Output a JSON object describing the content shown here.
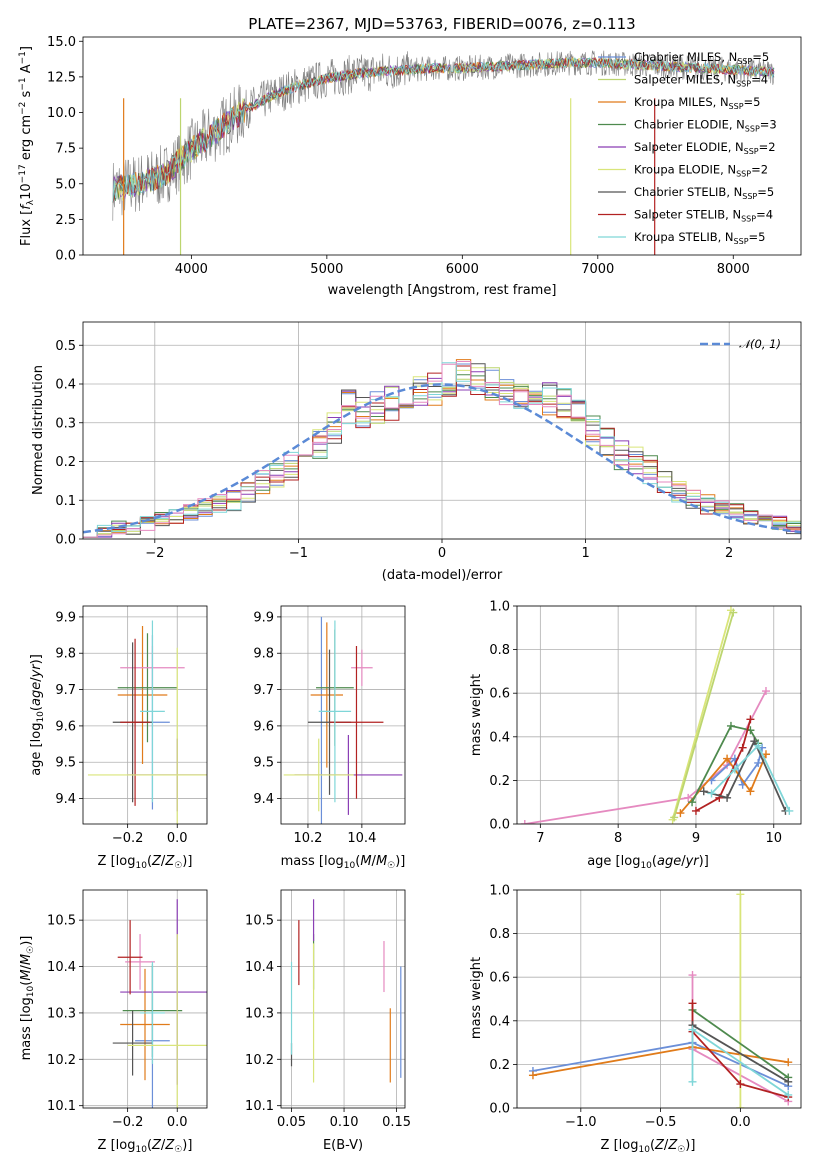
{
  "chart_data": [
    {
      "id": "spectrum",
      "type": "line",
      "title": "PLATE=2367, MJD=53763, FIBERID=0076, z=0.113",
      "xlabel": "wavelength [Angstrom, rest frame]",
      "ylabel": "Flux [f_λ 10^-17 erg cm^-2 s^-1 A^-1]",
      "xlim": [
        3200,
        8500
      ],
      "ylim": [
        0,
        15.3
      ],
      "xticks": [
        "4000",
        "5000",
        "6000",
        "7000",
        "8000"
      ],
      "yticks": [
        "0.0",
        "2.5",
        "5.0",
        "7.5",
        "10.0",
        "12.5",
        "15.0"
      ],
      "grid": false,
      "legend_position": "upper right",
      "series": [
        {
          "name": "Chabrier MILES, N_SSP=5",
          "color": "#6b8fd8"
        },
        {
          "name": "Salpeter MILES, N_SSP=4",
          "color": "#bcd56f"
        },
        {
          "name": "Kroupa MILES, N_SSP=5",
          "color": "#e07b1a"
        },
        {
          "name": "Chabrier ELODIE, N_SSP=3",
          "color": "#4e8a4e"
        },
        {
          "name": "Salpeter ELODIE, N_SSP=2",
          "color": "#8b3fb5"
        },
        {
          "name": "Kroupa ELODIE, N_SSP=2",
          "color": "#d9e57a"
        },
        {
          "name": "Chabrier STELIB, N_SSP=5",
          "color": "#555555"
        },
        {
          "name": "Salpeter STELIB, N_SSP=4",
          "color": "#b22222"
        },
        {
          "name": "Kroupa STELIB, N_SSP=5",
          "color": "#7fd6d8"
        }
      ],
      "model_points": {
        "x": [
          3420,
          3600,
          3800,
          4000,
          4200,
          4400,
          4600,
          4800,
          5000,
          5200,
          5400,
          5600,
          5800,
          6000,
          6200,
          6400,
          6600,
          6800,
          7000,
          7200,
          7400,
          7600,
          7800,
          8000,
          8200,
          8300
        ],
        "y": [
          4.6,
          5.0,
          5.6,
          7.4,
          8.8,
          10.2,
          11.2,
          11.9,
          12.4,
          12.7,
          12.9,
          13.0,
          13.1,
          13.1,
          13.2,
          13.3,
          13.4,
          13.5,
          13.5,
          13.4,
          13.3,
          13.2,
          13.1,
          13.0,
          12.9,
          12.8
        ]
      }
    },
    {
      "id": "residuals",
      "type": "line",
      "title": "",
      "xlabel": "(data-model)/error",
      "ylabel": "Normed distribution",
      "xlim": [
        -2.5,
        2.5
      ],
      "ylim": [
        0,
        0.56
      ],
      "xticks": [
        "−2",
        "−1",
        "0",
        "1",
        "2"
      ],
      "yticks": [
        "0.0",
        "0.1",
        "0.2",
        "0.3",
        "0.4",
        "0.5"
      ],
      "grid": true,
      "legend_position": "upper right",
      "reference_curve": {
        "name": "𝒩(0, 1)",
        "color": "#5b8ad6",
        "style": "dashed"
      },
      "bin_width": 0.1,
      "bin_start": -2.5,
      "histogram_envelope": [
        0.02,
        0.02,
        0.03,
        0.03,
        0.04,
        0.05,
        0.06,
        0.07,
        0.08,
        0.09,
        0.1,
        0.12,
        0.15,
        0.17,
        0.19,
        0.22,
        0.25,
        0.29,
        0.34,
        0.33,
        0.34,
        0.35,
        0.36,
        0.38,
        0.39,
        0.41,
        0.42,
        0.41,
        0.4,
        0.39,
        0.38,
        0.37,
        0.36,
        0.35,
        0.32,
        0.28,
        0.25,
        0.22,
        0.2,
        0.18,
        0.15,
        0.12,
        0.1,
        0.09,
        0.08,
        0.07,
        0.06,
        0.05,
        0.04,
        0.03
      ]
    },
    {
      "id": "age_vs_z",
      "type": "scatter",
      "xlabel": "Z [log10(Z/Z⊙)]",
      "ylabel": "age [log10(age/yr)]",
      "xlim": [
        -0.38,
        0.12
      ],
      "ylim": [
        9.33,
        9.93
      ],
      "xticks": [
        "−0.2",
        "0.0"
      ],
      "yticks": [
        "9.4",
        "9.5",
        "9.6",
        "9.7",
        "9.8",
        "9.9"
      ],
      "grid": true,
      "errorbars": [
        {
          "x": -0.1,
          "xerr": 0.07,
          "y": 9.61,
          "yerr": 0.24,
          "color": "#6b8fd8"
        },
        {
          "x": -0.14,
          "xerr": 0.1,
          "y": 9.685,
          "yerr": 0.19,
          "color": "#e07b1a"
        },
        {
          "x": -0.12,
          "xerr": 0.12,
          "y": 9.705,
          "yerr": 0.15,
          "color": "#4e8a4e"
        },
        {
          "x": 0.0,
          "xerr": 0.2,
          "y": 9.465,
          "yerr": 0.1,
          "color": "#8b3fb5"
        },
        {
          "x": -0.1,
          "xerr": 0.13,
          "y": 9.76,
          "yerr": 0.06,
          "color": "#e58ac0"
        },
        {
          "x": -0.18,
          "xerr": 0.08,
          "y": 9.61,
          "yerr": 0.22,
          "color": "#555555"
        },
        {
          "x": -0.17,
          "xerr": 0.06,
          "y": 9.61,
          "yerr": 0.23,
          "color": "#b22222"
        },
        {
          "x": -0.1,
          "xerr": 0.05,
          "y": 9.64,
          "yerr": 0.25,
          "color": "#7fd6d8"
        },
        {
          "x": 0.0,
          "xerr": 0.36,
          "y": 9.465,
          "yerr": 0.35,
          "color": "#d9e57a"
        }
      ]
    },
    {
      "id": "age_vs_mass",
      "type": "scatter",
      "xlabel": "mass [log10(M/M⊙)]",
      "ylabel": "",
      "xlim": [
        10.1,
        10.56
      ],
      "ylim": [
        9.33,
        9.93
      ],
      "xticks": [
        "10.2",
        "10.4"
      ],
      "yticks": [
        "9.4",
        "9.5",
        "9.6",
        "9.7",
        "9.8",
        "9.9"
      ],
      "grid": true,
      "errorbars": [
        {
          "x": 10.25,
          "xerr": 0.0,
          "y": 9.61,
          "yerr": 0.29,
          "color": "#6b8fd8"
        },
        {
          "x": 10.27,
          "xerr": 0.06,
          "y": 9.685,
          "yerr": 0.2,
          "color": "#e07b1a"
        },
        {
          "x": 10.3,
          "xerr": 0.07,
          "y": 9.705,
          "yerr": 0.16,
          "color": "#4e8a4e"
        },
        {
          "x": 10.35,
          "xerr": 0.2,
          "y": 9.465,
          "yerr": 0.11,
          "color": "#8b3fb5"
        },
        {
          "x": 10.4,
          "xerr": 0.04,
          "y": 9.76,
          "yerr": 0.05,
          "color": "#e58ac0"
        },
        {
          "x": 10.28,
          "xerr": 0.08,
          "y": 9.61,
          "yerr": 0.2,
          "color": "#555555"
        },
        {
          "x": 10.38,
          "xerr": 0.1,
          "y": 9.61,
          "yerr": 0.21,
          "color": "#b22222"
        },
        {
          "x": 10.3,
          "xerr": 0.06,
          "y": 9.64,
          "yerr": 0.25,
          "color": "#7fd6d8"
        },
        {
          "x": 10.24,
          "xerr": 0.13,
          "y": 9.465,
          "yerr": 0.1,
          "color": "#d9e57a"
        }
      ]
    },
    {
      "id": "weight_vs_age",
      "type": "line",
      "xlabel": "age [log10(age/yr)]",
      "ylabel": "mass weight",
      "xlim": [
        6.7,
        10.35
      ],
      "ylim": [
        0,
        1.0
      ],
      "xticks": [
        "7",
        "8",
        "9",
        "10"
      ],
      "yticks": [
        "0.0",
        "0.2",
        "0.4",
        "0.6",
        "0.8",
        "1.0"
      ],
      "grid": true,
      "series": [
        {
          "color": "#e58ac0",
          "x": [
            6.8,
            8.9,
            9.4,
            9.9
          ],
          "y": [
            0.0,
            0.12,
            0.27,
            0.61
          ]
        },
        {
          "color": "#d9e57a",
          "x": [
            8.7,
            9.45
          ],
          "y": [
            0.02,
            0.98
          ]
        },
        {
          "color": "#bcd56f",
          "x": [
            8.72,
            9.48
          ],
          "y": [
            0.03,
            0.97
          ]
        },
        {
          "color": "#6b8fd8",
          "x": [
            9.2,
            9.5,
            9.6,
            9.8,
            9.85
          ],
          "y": [
            0.2,
            0.3,
            0.18,
            0.28,
            0.35
          ]
        },
        {
          "color": "#e07b1a",
          "x": [
            8.8,
            9.4,
            9.7,
            9.9
          ],
          "y": [
            0.05,
            0.3,
            0.15,
            0.32
          ]
        },
        {
          "color": "#4e8a4e",
          "x": [
            8.95,
            9.45,
            9.7,
            9.8
          ],
          "y": [
            0.1,
            0.45,
            0.43,
            0.37
          ]
        },
        {
          "color": "#b22222",
          "x": [
            9.0,
            9.3,
            9.6,
            9.7
          ],
          "y": [
            0.06,
            0.12,
            0.35,
            0.48
          ]
        },
        {
          "color": "#555555",
          "x": [
            9.1,
            9.4,
            9.75,
            10.15
          ],
          "y": [
            0.15,
            0.12,
            0.38,
            0.06
          ]
        },
        {
          "color": "#7fd6d8",
          "x": [
            9.2,
            9.5,
            9.8,
            10.2
          ],
          "y": [
            0.14,
            0.25,
            0.36,
            0.06
          ]
        }
      ]
    },
    {
      "id": "mass_vs_z",
      "type": "scatter",
      "xlabel": "Z [log10(Z/Z⊙)]",
      "ylabel": "mass [log10(M/M⊙)]",
      "xlim": [
        -0.38,
        0.12
      ],
      "ylim": [
        10.095,
        10.565
      ],
      "xticks": [
        "−0.2",
        "0.0"
      ],
      "yticks": [
        "10.1",
        "10.2",
        "10.3",
        "10.4",
        "10.5"
      ],
      "grid": true,
      "errorbars": [
        {
          "x": -0.1,
          "xerr": 0.07,
          "y": 10.24,
          "yerr": 0.16,
          "color": "#6b8fd8"
        },
        {
          "x": -0.13,
          "xerr": 0.1,
          "y": 10.275,
          "yerr": 0.12,
          "color": "#e07b1a"
        },
        {
          "x": -0.1,
          "xerr": 0.12,
          "y": 10.305,
          "yerr": 0.1,
          "color": "#4e8a4e"
        },
        {
          "x": 0.0,
          "xerr": 0.23,
          "y": 10.345,
          "yerr": 0.2,
          "color": "#8b3fb5"
        },
        {
          "x": -0.15,
          "xerr": 0.06,
          "y": 10.41,
          "yerr": 0.06,
          "color": "#e58ac0"
        },
        {
          "x": -0.18,
          "xerr": 0.08,
          "y": 10.235,
          "yerr": 0.07,
          "color": "#555555"
        },
        {
          "x": -0.19,
          "xerr": 0.05,
          "y": 10.42,
          "yerr": 0.08,
          "color": "#b22222"
        },
        {
          "x": -0.1,
          "xerr": 0.05,
          "y": 10.3,
          "yerr": 0.11,
          "color": "#7fd6d8"
        },
        {
          "x": 0.0,
          "xerr": 0.2,
          "y": 10.23,
          "yerr": 0.24,
          "color": "#d9e57a"
        }
      ]
    },
    {
      "id": "mass_vs_ebv",
      "type": "scatter",
      "xlabel": "E(B-V)",
      "ylabel": "",
      "xlim": [
        0.04,
        0.158
      ],
      "ylim": [
        10.095,
        10.565
      ],
      "xticks": [
        "0.05",
        "0.10",
        "0.15"
      ],
      "yticks": [
        "10.1",
        "10.2",
        "10.3",
        "10.4",
        "10.5"
      ],
      "grid": true,
      "errorbars": [
        {
          "x": 0.154,
          "xerr": 0,
          "y": 10.28,
          "yerr": 0.12,
          "color": "#6b8fd8"
        },
        {
          "x": 0.144,
          "xerr": 0,
          "y": 10.23,
          "yerr": 0.08,
          "color": "#e07b1a"
        },
        {
          "x": 0.071,
          "xerr": 0,
          "y": 10.41,
          "yerr": 0.06,
          "color": "#4e8a4e"
        },
        {
          "x": 0.071,
          "xerr": 0,
          "y": 10.5,
          "yerr": 0.045,
          "color": "#8b3fb5"
        },
        {
          "x": 0.138,
          "xerr": 0,
          "y": 10.4,
          "yerr": 0.055,
          "color": "#e58ac0"
        },
        {
          "x": 0.05,
          "xerr": 0,
          "y": 10.21,
          "yerr": 0.025,
          "color": "#555555"
        },
        {
          "x": 0.057,
          "xerr": 0,
          "y": 10.43,
          "yerr": 0.07,
          "color": "#b22222"
        },
        {
          "x": 0.05,
          "xerr": 0,
          "y": 10.31,
          "yerr": 0.1,
          "color": "#7fd6d8"
        },
        {
          "x": 0.071,
          "xerr": 0,
          "y": 10.3,
          "yerr": 0.15,
          "color": "#d9e57a"
        }
      ]
    },
    {
      "id": "weight_vs_z",
      "type": "line",
      "xlabel": "Z [log10(Z/Z⊙)]",
      "ylabel": "mass weight",
      "xlim": [
        -1.4,
        0.38
      ],
      "ylim": [
        0,
        1.0
      ],
      "xticks": [
        "−1.0",
        "−0.5",
        "0.0"
      ],
      "yticks": [
        "0.0",
        "0.2",
        "0.4",
        "0.6",
        "0.8",
        "1.0"
      ],
      "grid": true,
      "series": [
        {
          "color": "#6b8fd8",
          "x": [
            -1.3,
            -0.3,
            0.3
          ],
          "y": [
            0.17,
            0.3,
            0.1
          ]
        },
        {
          "color": "#e07b1a",
          "x": [
            -1.3,
            -0.3,
            0.3
          ],
          "y": [
            0.15,
            0.28,
            0.21
          ]
        },
        {
          "color": "#e58ac0",
          "x": [
            -0.3,
            -0.3,
            0.3
          ],
          "y": [
            0.61,
            0.27,
            0.03
          ]
        },
        {
          "color": "#d9e57a",
          "x": [
            0.0,
            0.0
          ],
          "y": [
            0.0,
            0.98
          ]
        },
        {
          "color": "#4e8a4e",
          "x": [
            -0.3,
            0.3
          ],
          "y": [
            0.45,
            0.14
          ]
        },
        {
          "color": "#b22222",
          "x": [
            -0.3,
            -0.3,
            0.0,
            0.3
          ],
          "y": [
            0.48,
            0.35,
            0.11,
            0.05
          ]
        },
        {
          "color": "#555555",
          "x": [
            -0.3,
            0.3
          ],
          "y": [
            0.38,
            0.12
          ]
        },
        {
          "color": "#7fd6d8",
          "x": [
            -0.3,
            -0.3,
            0.3
          ],
          "y": [
            0.12,
            0.36,
            0.06
          ]
        }
      ]
    }
  ]
}
